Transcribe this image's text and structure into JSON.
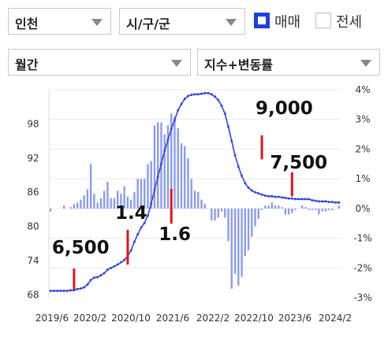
{
  "controls": {
    "region": "인천",
    "subregion": "시/구/군",
    "trade_type_sale": "매매",
    "trade_type_jeonse": "전세",
    "period": "월간",
    "metric": "지수+변동률"
  },
  "colors": {
    "accent": "#1f3fe0",
    "bar": "#8a9af0",
    "line": "#3344dd",
    "marker": "#e0141e"
  },
  "chart_data": {
    "type": "bar+line",
    "x_tick_labels": [
      "2019/6",
      "2020/2",
      "2020/10",
      "2021/6",
      "2022/2",
      "2022/10",
      "2023/6",
      "2024/2"
    ],
    "x_range": [
      "2019/6",
      "2024/3"
    ],
    "left_axis": {
      "ticks": [
        68,
        74,
        80,
        86,
        92,
        98
      ],
      "range": [
        67.5,
        104
      ]
    },
    "right_axis": {
      "ticks": [
        "4%",
        "3%",
        "2%",
        "1%",
        "0%",
        "-1%",
        "-2%",
        "-3%"
      ],
      "values": [
        4,
        3,
        2,
        1,
        0,
        -1,
        -2,
        -3
      ],
      "range": [
        -3,
        4
      ]
    },
    "series": [
      {
        "axis": "left",
        "values": [
          68.7,
          68.7,
          68.7,
          68.7,
          68.7,
          68.7,
          68.8,
          68.8,
          69.0,
          69.1,
          69.3,
          69.8,
          70.6,
          71.0,
          71.1,
          71.4,
          71.8,
          72.4,
          72.7,
          73.0,
          73.3,
          73.7,
          74.1,
          74.8,
          75.8,
          77.3,
          78.6,
          79.8,
          80.6,
          81.9,
          84.0,
          86.4,
          88.7,
          91.0,
          93.3,
          95.2,
          97.1,
          98.7,
          100.4,
          101.5,
          102.4,
          102.9,
          103.1,
          103.2,
          103.2,
          103.3,
          103.4,
          103.4,
          103.2,
          102.8,
          102.2,
          101.2,
          99.8,
          97.5,
          95.0,
          92.5,
          90.5,
          88.9,
          87.6,
          86.8,
          86.3,
          86.0,
          85.8,
          85.6,
          85.4,
          85.3,
          85.3,
          85.2,
          85.2,
          85.1,
          85.0,
          84.9,
          84.9,
          84.8,
          84.8,
          84.8,
          84.8,
          84.8,
          84.6,
          84.5,
          84.4,
          84.4,
          84.4,
          84.3,
          84.3,
          84.2,
          84.2
        ]
      },
      {
        "axis": "right",
        "values": [
          -0.1,
          0.0,
          0.0,
          0.0,
          0.1,
          0.0,
          0.05,
          0.15,
          0.2,
          0.3,
          0.45,
          0.65,
          1.5,
          0.5,
          0.2,
          0.35,
          0.6,
          0.9,
          0.35,
          0.35,
          0.6,
          0.5,
          0.75,
          0.4,
          0.3,
          0.55,
          1.0,
          1.0,
          1.0,
          1.5,
          1.6,
          2.8,
          2.9,
          2.9,
          2.5,
          2.8,
          3.2,
          3.1,
          2.7,
          2.2,
          2.1,
          1.7,
          1.0,
          0.6,
          0.55,
          0.3,
          0.15,
          0.0,
          -0.4,
          -0.4,
          -0.3,
          -0.1,
          -0.3,
          -1.1,
          -2.7,
          -2.2,
          -2.6,
          -2.3,
          -1.6,
          -1.4,
          -0.95,
          -0.6,
          -0.35,
          -0.05,
          0.1,
          0.1,
          0.2,
          0.1,
          0.1,
          0.05,
          -0.2,
          -0.2,
          -0.15,
          -0.05,
          0.0,
          0.1,
          0.05,
          -0.05,
          -0.05,
          -0.05,
          -0.2,
          -0.1,
          -0.1,
          -0.05,
          -0.05,
          0.0,
          0.1
        ]
      }
    ],
    "annotations": [
      {
        "label": "6,500",
        "x_index": 7,
        "y_from": 68.9,
        "y_to": 72.6
      },
      {
        "label": "1.4",
        "x_index": 23,
        "y_from": 73.3,
        "y_to": 79.4
      },
      {
        "label": "1.6",
        "x_index": 36,
        "y_from": 80.5,
        "y_to": 86.6
      },
      {
        "label": "9,000",
        "x_index": 63,
        "y_from": 91.8,
        "y_to": 96.0
      },
      {
        "label": "7,500",
        "x_index": 72,
        "y_from": 85.3,
        "y_to": 89.5
      }
    ]
  }
}
